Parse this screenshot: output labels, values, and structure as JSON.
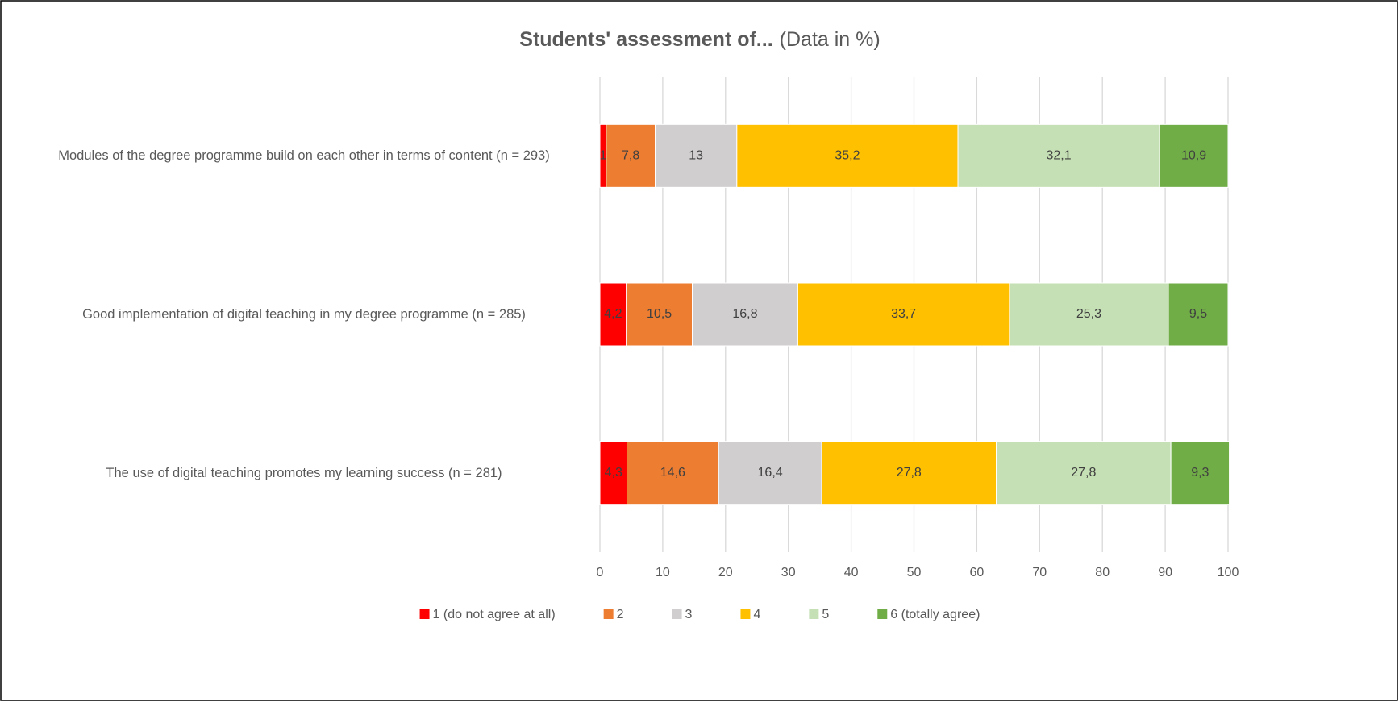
{
  "chart_data": {
    "type": "stacked-bar-horizontal",
    "title": "Students' assessment of...",
    "subtitle": "(Data in %)",
    "categories": [
      "Modules of the degree programme build on each other in terms of content (n = 293)",
      "Good implementation of digital teaching in my degree programme (n = 285)",
      "The use of digital teaching promotes my learning success (n = 281)"
    ],
    "series": [
      {
        "name": "1 (do not agree at all)",
        "color": "#ff0000",
        "values": [
          1,
          4.2,
          4.3
        ],
        "value_labels": [
          "1",
          "4,2",
          "4,3"
        ]
      },
      {
        "name": "2",
        "color": "#ed7d31",
        "values": [
          7.8,
          10.5,
          14.6
        ],
        "value_labels": [
          "7,8",
          "10,5",
          "14,6"
        ]
      },
      {
        "name": "3",
        "color": "#d0cece",
        "values": [
          13,
          16.8,
          16.4
        ],
        "value_labels": [
          "13",
          "16,8",
          "16,4"
        ]
      },
      {
        "name": "4",
        "color": "#ffc000",
        "values": [
          35.2,
          33.7,
          27.8
        ],
        "value_labels": [
          "35,2",
          "33,7",
          "27,8"
        ]
      },
      {
        "name": "5",
        "color": "#c5e0b4",
        "values": [
          32.1,
          25.3,
          27.8
        ],
        "value_labels": [
          "32,1",
          "25,3",
          "27,8"
        ]
      },
      {
        "name": "6 (totally agree)",
        "color": "#70ad47",
        "values": [
          10.9,
          9.5,
          9.3
        ],
        "value_labels": [
          "10,9",
          "9,5",
          "9,3"
        ]
      }
    ],
    "xlim": [
      0,
      100
    ],
    "xticks": [
      0,
      10,
      20,
      30,
      40,
      50,
      60,
      70,
      80,
      90,
      100
    ],
    "grid": true,
    "legend": "bottom"
  }
}
